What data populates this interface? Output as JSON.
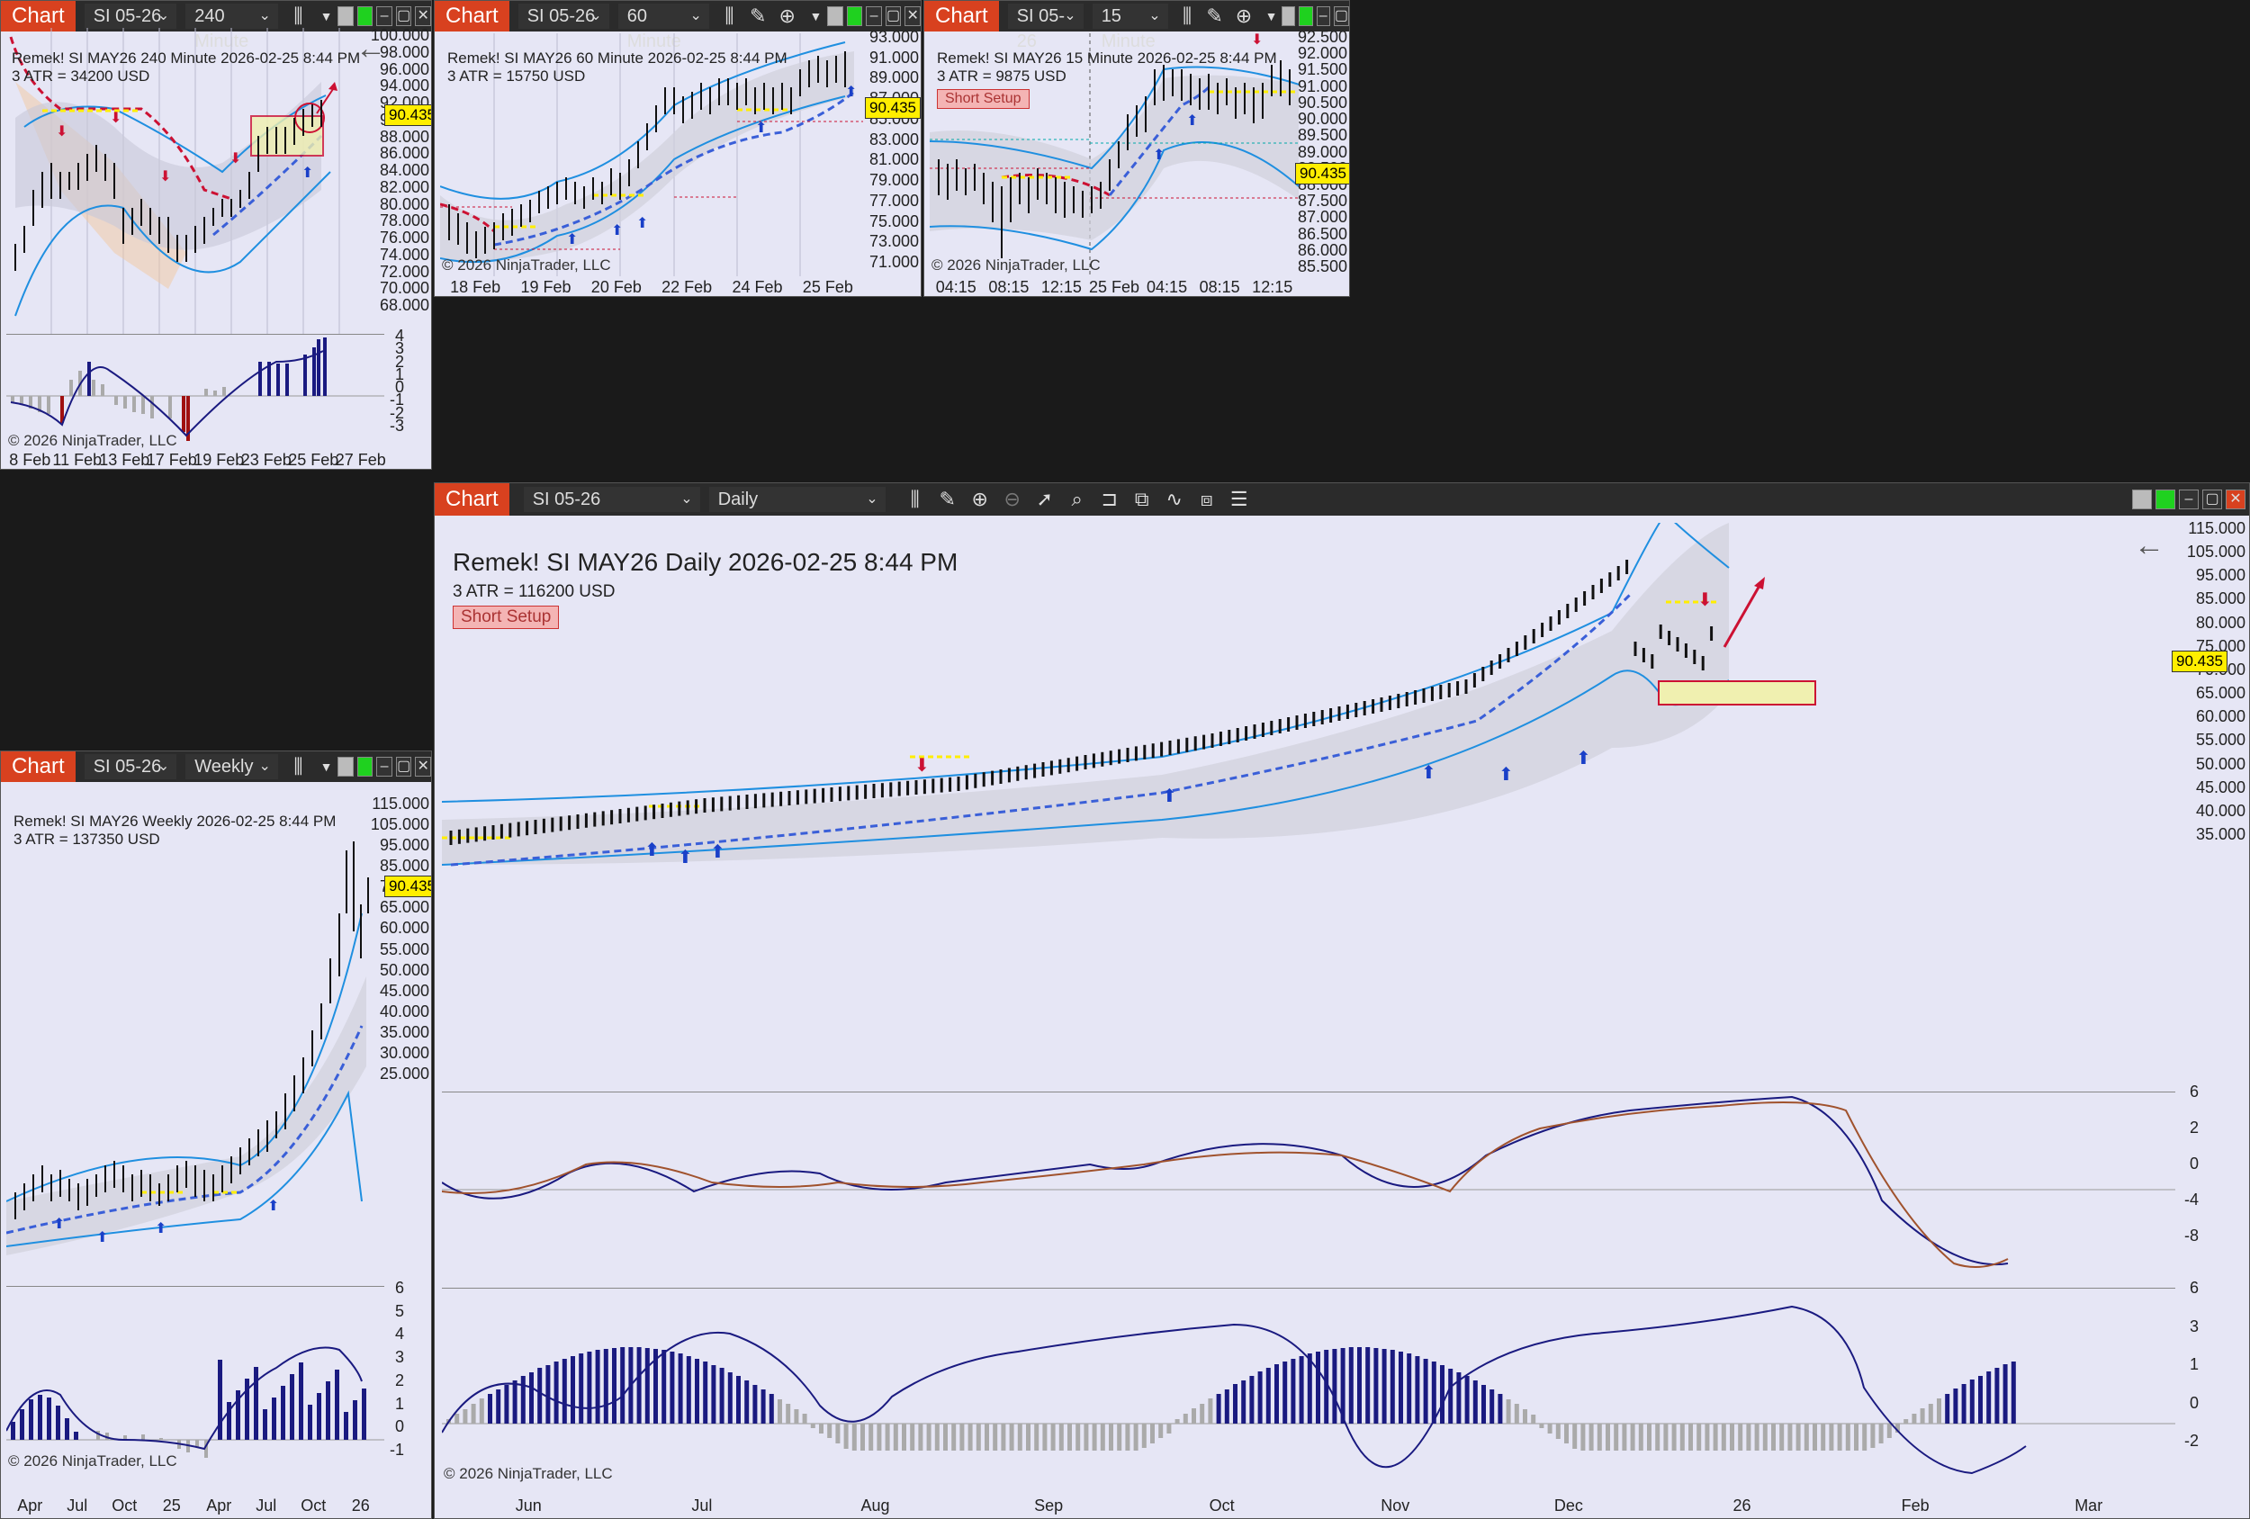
{
  "common": {
    "chart_label": "Chart",
    "instrument": "SI 05-26",
    "copyright": "© 2026 NinjaTrader, LLC",
    "price_tag": "90.435",
    "short_setup": "Short Setup",
    "colors": {
      "chart_bg": "#e6e6f5",
      "toolbar": "#2b2b2b",
      "chart_button": "#d8411f",
      "histogram": "#1a1a80",
      "upper_band": "#1f8fe0",
      "trend_red": "#cc1133",
      "trend_blue": "#3a5fd8",
      "yellow": "#ffee00"
    }
  },
  "c240": {
    "interval": "240 Minute",
    "title": "Remek!  SI MAY26  240 Minute  2026-02-25 8:44 PM",
    "atr": "3 ATR = 34200 USD",
    "y_labels": [
      "100.000",
      "98.000",
      "96.000",
      "94.000",
      "92.000",
      "90.000",
      "88.000",
      "86.000",
      "84.000",
      "82.000",
      "80.000",
      "78.000",
      "76.000",
      "74.000",
      "72.000",
      "70.000",
      "68.000"
    ],
    "osc_labels": [
      "4",
      "3",
      "2",
      "1",
      "0",
      "-1",
      "-2",
      "-3"
    ],
    "x_labels": [
      "8 Feb",
      "11 Feb",
      "13 Feb",
      "17 Feb",
      "19 Feb",
      "23 Feb",
      "25 Feb",
      "27 Feb"
    ]
  },
  "c60": {
    "interval": "60 Minute",
    "title": "Remek!  SI MAY26  60 Minute  2026-02-25 8:44 PM",
    "atr": "3 ATR = 15750 USD",
    "y_labels": [
      "93.000",
      "91.000",
      "89.000",
      "87.000",
      "85.000",
      "83.000",
      "81.000",
      "79.000",
      "77.000",
      "75.000",
      "73.000",
      "71.000"
    ],
    "x_labels": [
      "18 Feb",
      "19 Feb",
      "20 Feb",
      "22 Feb",
      "24 Feb",
      "25 Feb"
    ]
  },
  "c15": {
    "interval": "15 Minute",
    "title": "Remek!  SI MAY26  15 Minute  2026-02-25 8:44 PM",
    "atr": "3 ATR = 9875 USD",
    "y_labels": [
      "92.500",
      "92.000",
      "91.500",
      "91.000",
      "90.500",
      "90.000",
      "89.500",
      "89.000",
      "88.500",
      "88.000",
      "87.500",
      "87.000",
      "86.500",
      "86.000",
      "85.500"
    ],
    "x_labels": [
      "04:15",
      "08:15",
      "12:15",
      "25 Feb",
      "04:15",
      "08:15",
      "12:15"
    ]
  },
  "cweekly": {
    "interval": "Weekly",
    "title": "Remek!  SI MAY26  Weekly  2026-02-25 8:44 PM",
    "atr": "3 ATR = 137350 USD",
    "y_labels": [
      "115.000",
      "105.000",
      "95.000",
      "85.000",
      "75.000",
      "65.000",
      "60.000",
      "55.000",
      "50.000",
      "45.000",
      "40.000",
      "35.000",
      "30.000",
      "25.000"
    ],
    "osc_labels": [
      "6",
      "5",
      "4",
      "3",
      "2",
      "1",
      "0",
      "-1"
    ],
    "x_labels": [
      "Apr",
      "Jul",
      "Oct",
      "25",
      "Apr",
      "Jul",
      "Oct",
      "26"
    ]
  },
  "cdaily": {
    "interval": "Daily",
    "title": "Remek!  SI MAY26  Daily  2026-02-25 8:44 PM",
    "atr": "3 ATR = 116200 USD",
    "y_labels": [
      "115.000",
      "105.000",
      "95.000",
      "85.000",
      "80.000",
      "75.000",
      "70.000",
      "65.000",
      "60.000",
      "55.000",
      "50.000",
      "45.000",
      "40.000",
      "35.000"
    ],
    "osc1_labels": [
      "6",
      "2",
      "0",
      "-4",
      "-8"
    ],
    "osc2_labels": [
      "6",
      "3",
      "1",
      "0",
      "-2"
    ],
    "x_labels": [
      "Jun",
      "Jul",
      "Aug",
      "Sep",
      "Oct",
      "Nov",
      "Dec",
      "26",
      "Feb",
      "Mar"
    ]
  }
}
